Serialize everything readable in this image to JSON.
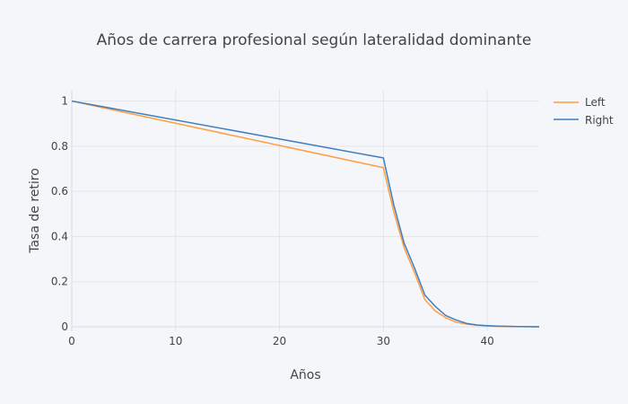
{
  "chart_data": {
    "type": "line",
    "title": "Años de carrera profesional según lateralidad dominante",
    "xlabel": "Años",
    "ylabel": "Tasa de retiro",
    "xlim": [
      0,
      45
    ],
    "ylim": [
      -0.02,
      1.05
    ],
    "x_ticks": [
      0,
      10,
      20,
      30,
      40
    ],
    "x_tick_labels": [
      "0",
      "10",
      "20",
      "30",
      "40"
    ],
    "y_ticks": [
      0,
      0.2,
      0.4,
      0.6,
      0.8,
      1
    ],
    "y_tick_labels": [
      "0",
      "0.2",
      "0.4",
      "0.6",
      "0.8",
      "1"
    ],
    "grid": true,
    "legend_position": "top-right",
    "series": [
      {
        "name": "Left",
        "color": "#ff9e3d",
        "x": [
          0,
          30,
          31,
          32,
          33,
          34,
          35,
          36,
          37,
          38,
          39,
          40,
          41,
          42,
          43,
          44,
          45
        ],
        "y": [
          1.0,
          0.705,
          0.51,
          0.35,
          0.24,
          0.12,
          0.07,
          0.04,
          0.02,
          0.012,
          0.007,
          0.004,
          0.002,
          0.001,
          0.001,
          0.0005,
          0.0
        ]
      },
      {
        "name": "Right",
        "color": "#3f7fbf",
        "x": [
          0,
          30,
          31,
          32,
          33,
          34,
          35,
          36,
          37,
          38,
          39,
          40,
          41,
          42,
          43,
          44,
          45
        ],
        "y": [
          1.0,
          0.748,
          0.54,
          0.37,
          0.26,
          0.14,
          0.09,
          0.05,
          0.03,
          0.015,
          0.008,
          0.005,
          0.003,
          0.002,
          0.001,
          0.0005,
          0.0
        ]
      }
    ]
  }
}
